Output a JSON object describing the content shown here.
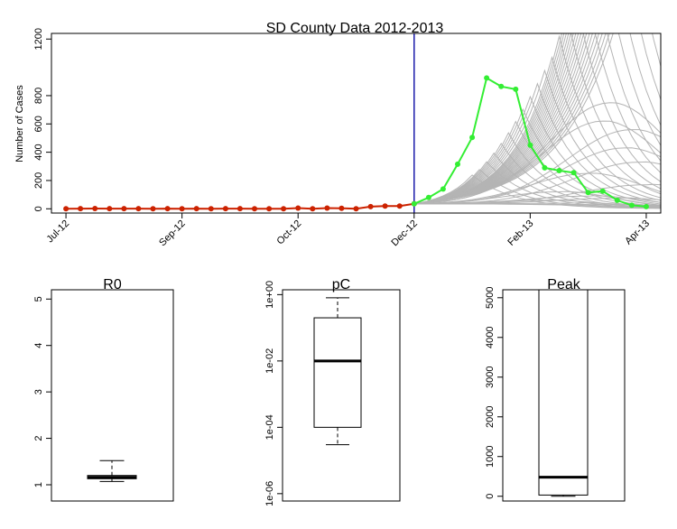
{
  "chart_data": [
    {
      "type": "line",
      "title": "SD County Data 2012-2013",
      "xlabel": "",
      "ylabel": "Number of Cases",
      "xlim_weeks": [
        -1,
        41
      ],
      "ylim": [
        -30,
        1240
      ],
      "x_tick_labels": [
        "Jul-12",
        "Sep-12",
        "Oct-12",
        "Dec-12",
        "Feb-13",
        "Apr-13"
      ],
      "x_tick_weeks": [
        0,
        8,
        16,
        24,
        32,
        40
      ],
      "y_ticks": [
        0,
        200,
        400,
        600,
        800,
        1200
      ],
      "grid": false,
      "legend": "none",
      "vertical_line": {
        "week": 24,
        "color": "#1a1aaa"
      },
      "series": [
        {
          "role": "observed-before-cutoff",
          "color": "#cc2200",
          "weeks": [
            0,
            1,
            2,
            3,
            4,
            5,
            6,
            7,
            8,
            9,
            10,
            11,
            12,
            13,
            14,
            15,
            16,
            17,
            18,
            19,
            20,
            21,
            22,
            23,
            24
          ],
          "values": [
            0,
            1,
            2,
            1,
            1,
            1,
            0,
            1,
            0,
            1,
            0,
            1,
            1,
            0,
            0,
            0,
            5,
            0,
            5,
            4,
            0,
            15,
            20,
            20,
            35
          ]
        },
        {
          "role": "observed-after-cutoff",
          "color": "#33ee33",
          "weeks": [
            24,
            25,
            26,
            27,
            28,
            29,
            30,
            31,
            32,
            33,
            34,
            35,
            36,
            37,
            38,
            39,
            40
          ],
          "values": [
            35,
            80,
            140,
            315,
            505,
            925,
            865,
            845,
            450,
            290,
            270,
            255,
            115,
            125,
            60,
            25,
            15
          ]
        },
        {
          "role": "simulated-trajectories",
          "color": "#b4b4b4",
          "start_week": 24,
          "start_value": 35,
          "peak_week_growth": [
            [
              28,
              0.48
            ],
            [
              28.5,
              0.46
            ],
            [
              29,
              0.45
            ],
            [
              29.5,
              0.44
            ],
            [
              30,
              0.43
            ],
            [
              30.5,
              0.42
            ],
            [
              31,
              0.41
            ],
            [
              31.5,
              0.4
            ],
            [
              32,
              0.39
            ],
            [
              32.5,
              0.38
            ],
            [
              33,
              0.37
            ],
            [
              33.5,
              0.36
            ],
            [
              34,
              0.355
            ],
            [
              34.5,
              0.35
            ],
            [
              35,
              0.345
            ],
            [
              35.5,
              0.34
            ],
            [
              36,
              0.335
            ],
            [
              36.5,
              0.33
            ],
            [
              37,
              0.325
            ],
            [
              37.5,
              0.32
            ],
            [
              38,
              0.315
            ],
            [
              38.5,
              0.31
            ],
            [
              39,
              0.305
            ],
            [
              39.5,
              0.3
            ],
            [
              40,
              0.295
            ],
            [
              41,
              0.29
            ],
            [
              42,
              0.285
            ],
            [
              43,
              0.28
            ],
            [
              44,
              0.275
            ],
            [
              46,
              0.27
            ],
            [
              50,
              0.265
            ],
            [
              54,
              0.26
            ]
          ],
          "peak_values_high": [
            750,
            620,
            560,
            430,
            330,
            250
          ],
          "peak_values_low": [
            170,
            120,
            90,
            75,
            60,
            40,
            30,
            20
          ],
          "peak_weeks_high": [
            37.5,
            37,
            39,
            38.5,
            39.5,
            36
          ],
          "peak_weeks_low": [
            40,
            34,
            36,
            38,
            33,
            35,
            37,
            39
          ]
        }
      ]
    },
    {
      "type": "box",
      "title": "R0",
      "scale": "linear",
      "ylim": [
        0.65,
        5.2
      ],
      "y_ticks": [
        1,
        2,
        3,
        4,
        5
      ],
      "whisker_low": 1.07,
      "q1": 1.13,
      "median": 1.16,
      "q3": 1.2,
      "whisker_high": 1.52
    },
    {
      "type": "box",
      "title": "pC",
      "scale": "log10",
      "ylim": [
        6e-07,
        1.4
      ],
      "y_ticks": [
        1e-06,
        0.0001,
        0.01,
        1
      ],
      "y_tick_labels": [
        "1e-06",
        "1e-04",
        "1e-02",
        "1e+00"
      ],
      "whisker_low": 3e-05,
      "q1": 0.0001,
      "median": 0.01,
      "q3": 0.2,
      "whisker_high": 0.8
    },
    {
      "type": "box",
      "title": "Peak",
      "scale": "linear",
      "ylim": [
        -120,
        5200
      ],
      "y_ticks": [
        0,
        1000,
        2000,
        3000,
        4000,
        5000
      ],
      "whisker_low": 0,
      "q1": 30,
      "median": 480,
      "q3": 5200,
      "whisker_high": 5200
    }
  ]
}
